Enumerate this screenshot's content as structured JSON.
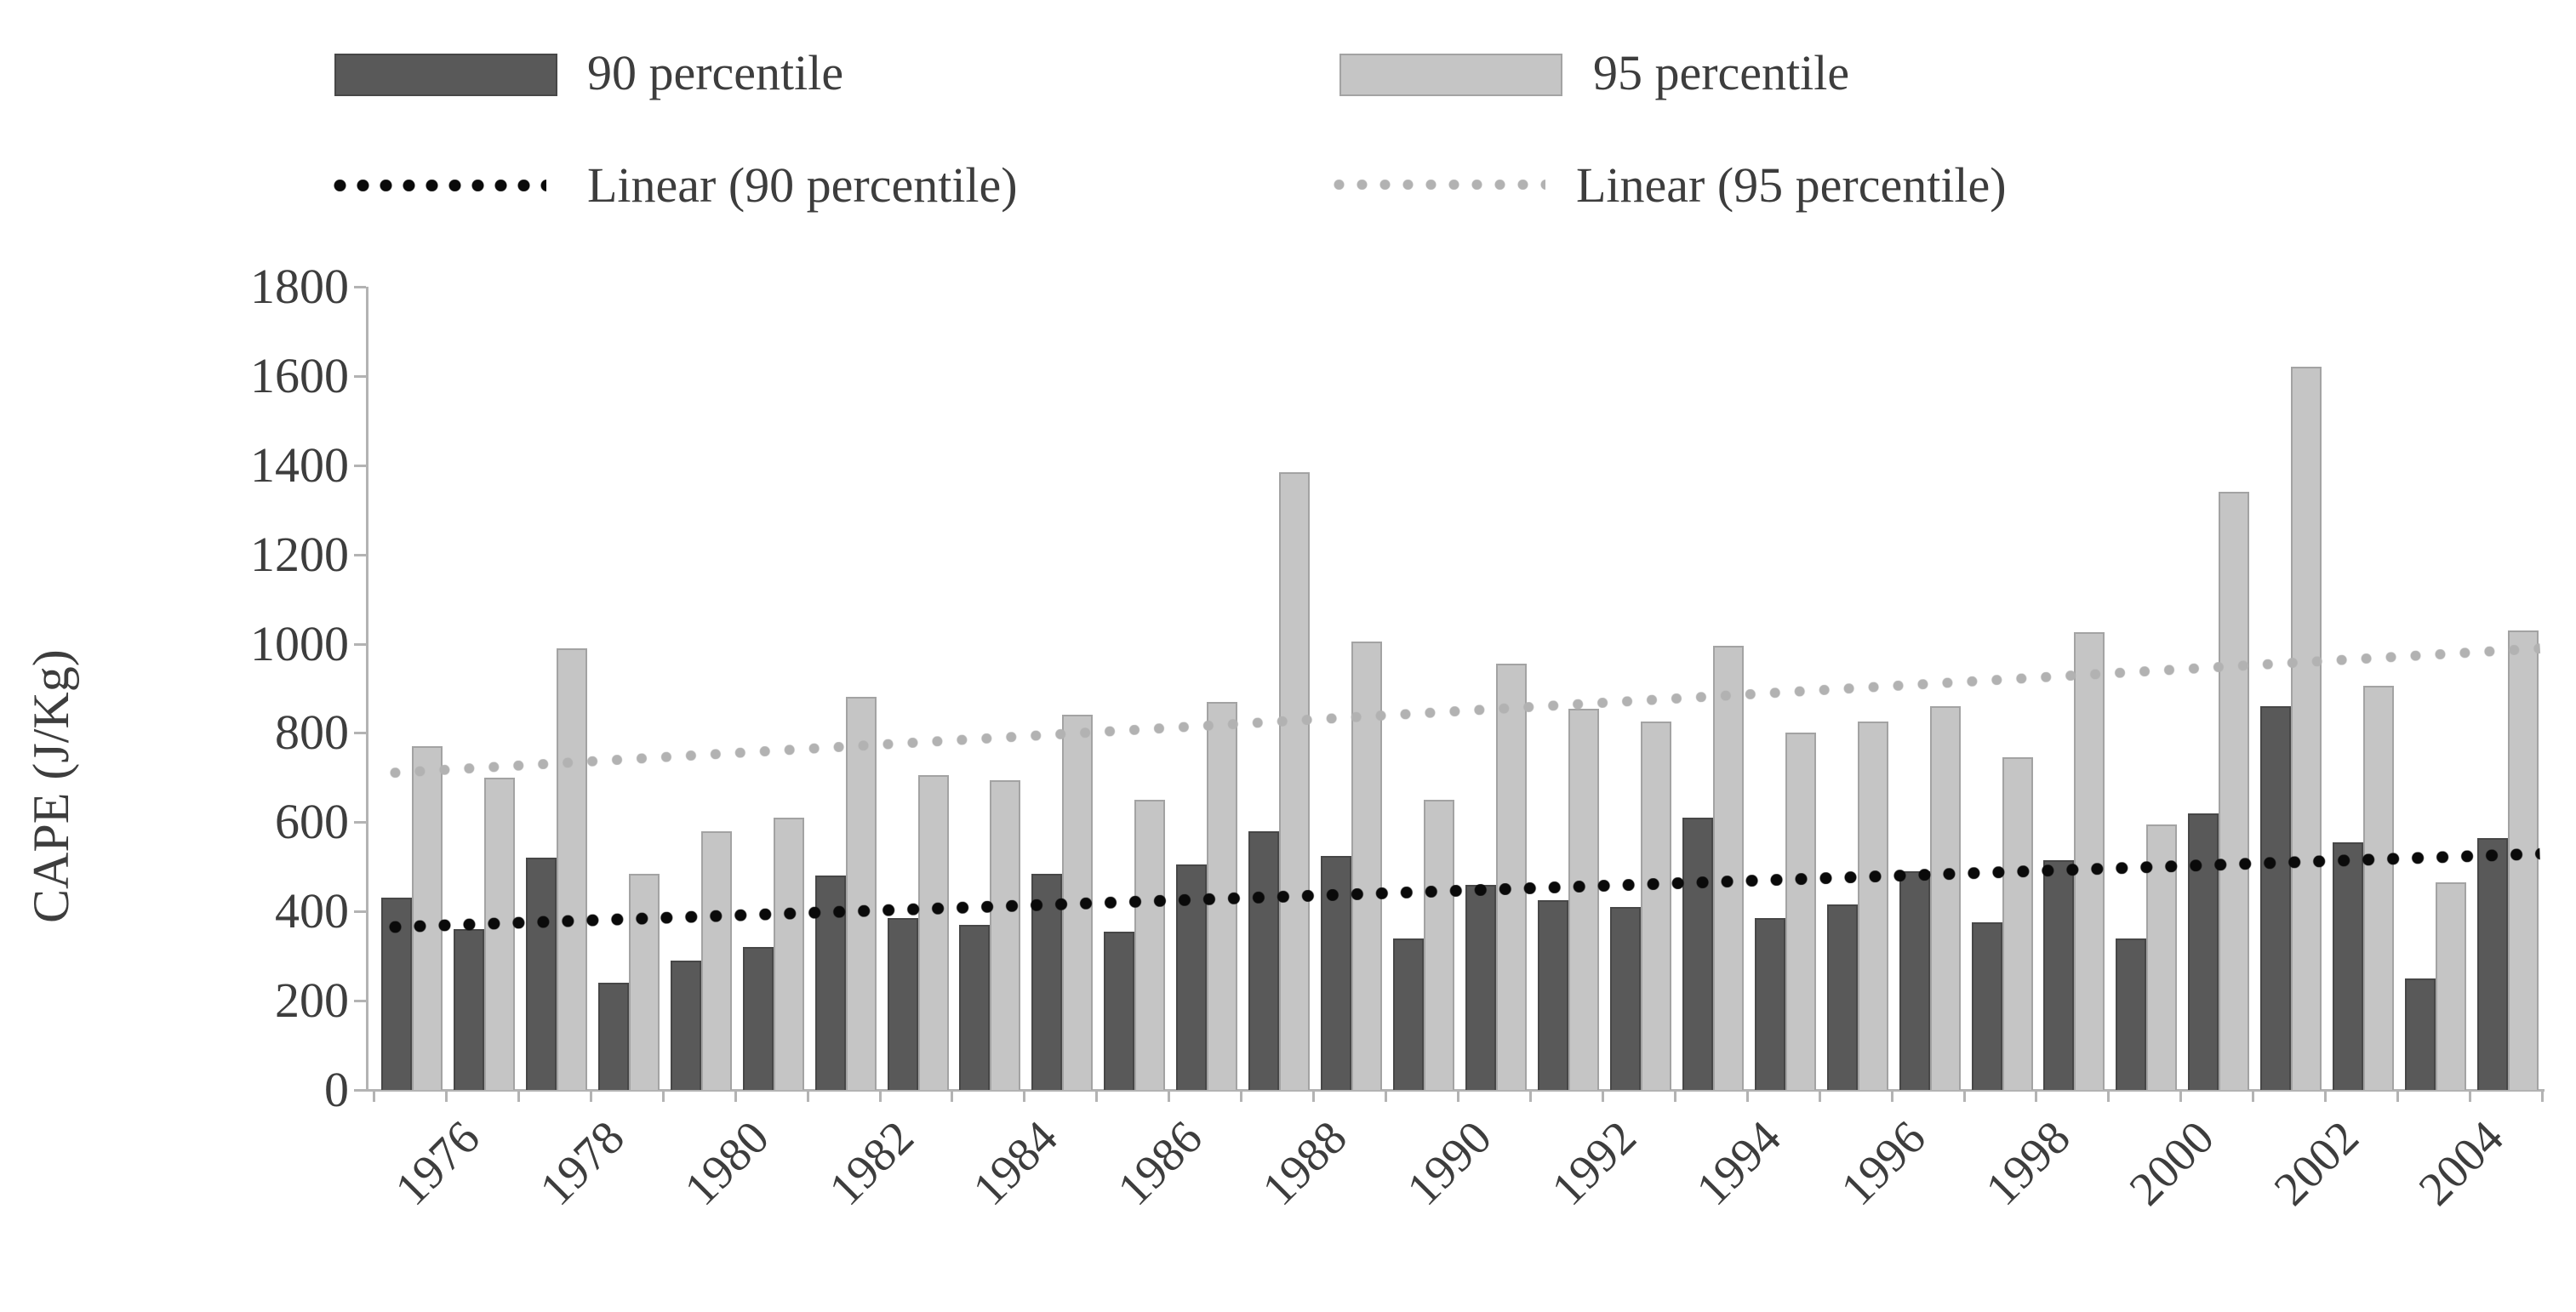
{
  "figure": {
    "background": "#ffffff",
    "text_color": "#3d3d3d",
    "axis_color": "#b3b3b3"
  },
  "legend": {
    "items": [
      {
        "label": "90 percentile",
        "marker": "swatch",
        "color": "#595959"
      },
      {
        "label": "95 percentile",
        "marker": "swatch",
        "color": "#c5c5c5"
      },
      {
        "label": "Linear (90 percentile)",
        "marker": "dotted-line",
        "color": "#0a0a0a"
      },
      {
        "label": "Linear (95 percentile)",
        "marker": "dotted-line",
        "color": "#b2b2b2"
      }
    ]
  },
  "chart_data": {
    "type": "bar",
    "title": "",
    "xlabel": "",
    "ylabel": "CAPE (J/Kg)",
    "ylim": [
      0,
      1800
    ],
    "ytick_step": 200,
    "grid": false,
    "legend_position": "top",
    "categories": [
      1976,
      1977,
      1978,
      1979,
      1980,
      1981,
      1982,
      1983,
      1984,
      1985,
      1986,
      1987,
      1988,
      1989,
      1990,
      1991,
      1992,
      1993,
      1994,
      1995,
      1996,
      1997,
      1998,
      1999,
      2000,
      2001,
      2002,
      2003,
      2004,
      2005
    ],
    "xtick_labels": [
      "1976",
      "1978",
      "1980",
      "1982",
      "1984",
      "1986",
      "1988",
      "1990",
      "1992",
      "1994",
      "1996",
      "1998",
      "2000",
      "2002",
      "2004"
    ],
    "series": [
      {
        "name": "90 percentile",
        "color": "#595959",
        "border_color": "#474747",
        "values": [
          430,
          360,
          520,
          240,
          290,
          320,
          480,
          385,
          370,
          485,
          355,
          505,
          580,
          525,
          340,
          460,
          425,
          410,
          610,
          385,
          415,
          490,
          375,
          515,
          340,
          620,
          860,
          555,
          250,
          565
        ]
      },
      {
        "name": "95 percentile",
        "color": "#c5c5c5",
        "border_color": "#a3a3a3",
        "values": [
          770,
          700,
          990,
          485,
          580,
          610,
          880,
          705,
          695,
          840,
          650,
          870,
          1385,
          1005,
          650,
          955,
          855,
          825,
          995,
          800,
          825,
          860,
          745,
          1025,
          595,
          1340,
          1620,
          905,
          465,
          1030
        ]
      }
    ],
    "trendlines": [
      {
        "name": "Linear (90 percentile)",
        "color": "#0a0a0a",
        "style": "dotted",
        "start_value": 365,
        "end_value": 530
      },
      {
        "name": "Linear (95 percentile)",
        "color": "#b2b2b2",
        "style": "dotted",
        "start_value": 710,
        "end_value": 990
      }
    ]
  }
}
